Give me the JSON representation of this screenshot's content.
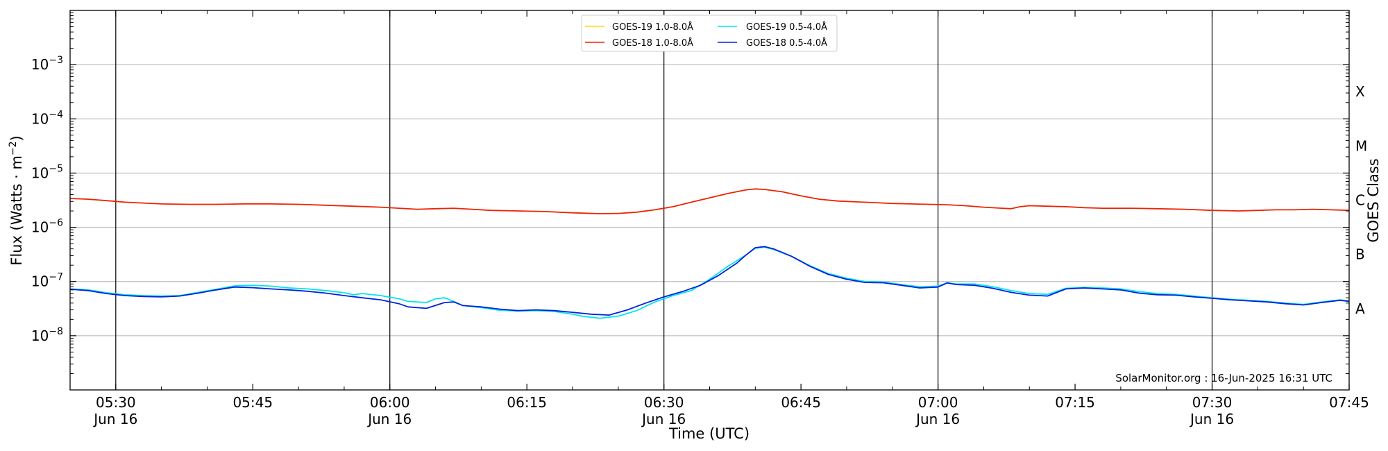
{
  "chart_data": {
    "type": "line",
    "xlabel": "Time (UTC)",
    "ylabel_main": "Flux (Watts · m",
    "ylabel_sup": "−2",
    "ylabel_close": ")",
    "right_label": "GOES Class",
    "credit": "SolarMonitor.org : 16-Jun-2025 16:31 UTC",
    "y_scale": "log",
    "ylim": [
      1e-09,
      0.01
    ],
    "x_range_minutes": [
      325,
      465
    ],
    "grid": "horizontal",
    "legend_position": "top-center",
    "y_ticks": [
      {
        "exp": -8,
        "base": "10",
        "sup": "−8"
      },
      {
        "exp": -7,
        "base": "10",
        "sup": "−7"
      },
      {
        "exp": -6,
        "base": "10",
        "sup": "−6"
      },
      {
        "exp": -5,
        "base": "10",
        "sup": "−5"
      },
      {
        "exp": -4,
        "base": "10",
        "sup": "−4"
      },
      {
        "exp": -3,
        "base": "10",
        "sup": "−3"
      }
    ],
    "x_ticks": [
      {
        "t": 330,
        "line1": "05:30",
        "line2": "Jun 16",
        "day_line": true
      },
      {
        "t": 345,
        "line1": "05:45",
        "line2": "",
        "day_line": false
      },
      {
        "t": 360,
        "line1": "06:00",
        "line2": "Jun 16",
        "day_line": true
      },
      {
        "t": 375,
        "line1": "06:15",
        "line2": "",
        "day_line": false
      },
      {
        "t": 390,
        "line1": "06:30",
        "line2": "Jun 16",
        "day_line": true
      },
      {
        "t": 405,
        "line1": "06:45",
        "line2": "",
        "day_line": false
      },
      {
        "t": 420,
        "line1": "07:00",
        "line2": "Jun 16",
        "day_line": true
      },
      {
        "t": 435,
        "line1": "07:15",
        "line2": "",
        "day_line": false
      },
      {
        "t": 450,
        "line1": "07:30",
        "line2": "Jun 16",
        "day_line": true
      },
      {
        "t": 465,
        "line1": "07:45",
        "line2": "",
        "day_line": false
      }
    ],
    "goes_classes": [
      {
        "label": "A",
        "exp": -7.5
      },
      {
        "label": "B",
        "exp": -6.5
      },
      {
        "label": "C",
        "exp": -5.5
      },
      {
        "label": "M",
        "exp": -4.5
      },
      {
        "label": "X",
        "exp": -3.5
      }
    ],
    "series": [
      {
        "name": "GOES-19 1.0-8.0Å",
        "color": "#ffd700",
        "points": []
      },
      {
        "name": "GOES-18 1.0-8.0Å",
        "color": "#ee2200",
        "points": [
          [
            325,
            3.4e-06
          ],
          [
            327,
            3.3e-06
          ],
          [
            329,
            3.1e-06
          ],
          [
            331,
            2.9e-06
          ],
          [
            333,
            2.8e-06
          ],
          [
            335,
            2.7e-06
          ],
          [
            338,
            2.65e-06
          ],
          [
            341,
            2.65e-06
          ],
          [
            344,
            2.7e-06
          ],
          [
            347,
            2.7e-06
          ],
          [
            350,
            2.65e-06
          ],
          [
            353,
            2.55e-06
          ],
          [
            356,
            2.45e-06
          ],
          [
            359,
            2.35e-06
          ],
          [
            361,
            2.25e-06
          ],
          [
            363,
            2.15e-06
          ],
          [
            365,
            2.2e-06
          ],
          [
            367,
            2.25e-06
          ],
          [
            369,
            2.15e-06
          ],
          [
            371,
            2.05e-06
          ],
          [
            374,
            2e-06
          ],
          [
            377,
            1.95e-06
          ],
          [
            380,
            1.85e-06
          ],
          [
            383,
            1.78e-06
          ],
          [
            385,
            1.8e-06
          ],
          [
            387,
            1.9e-06
          ],
          [
            389,
            2.1e-06
          ],
          [
            391,
            2.4e-06
          ],
          [
            393,
            2.9e-06
          ],
          [
            395,
            3.5e-06
          ],
          [
            397,
            4.2e-06
          ],
          [
            399,
            4.9e-06
          ],
          [
            400,
            5.1e-06
          ],
          [
            401,
            5e-06
          ],
          [
            403,
            4.5e-06
          ],
          [
            405,
            3.8e-06
          ],
          [
            407,
            3.3e-06
          ],
          [
            409,
            3.05e-06
          ],
          [
            411,
            2.95e-06
          ],
          [
            413,
            2.85e-06
          ],
          [
            415,
            2.75e-06
          ],
          [
            417,
            2.7e-06
          ],
          [
            419,
            2.65e-06
          ],
          [
            421,
            2.6e-06
          ],
          [
            423,
            2.5e-06
          ],
          [
            425,
            2.35e-06
          ],
          [
            427,
            2.25e-06
          ],
          [
            428,
            2.2e-06
          ],
          [
            429,
            2.4e-06
          ],
          [
            430,
            2.5e-06
          ],
          [
            432,
            2.45e-06
          ],
          [
            434,
            2.4e-06
          ],
          [
            436,
            2.3e-06
          ],
          [
            438,
            2.25e-06
          ],
          [
            441,
            2.25e-06
          ],
          [
            444,
            2.2e-06
          ],
          [
            447,
            2.15e-06
          ],
          [
            450,
            2.05e-06
          ],
          [
            453,
            2e-06
          ],
          [
            455,
            2.05e-06
          ],
          [
            457,
            2.1e-06
          ],
          [
            459,
            2.1e-06
          ],
          [
            461,
            2.15e-06
          ],
          [
            463,
            2.1e-06
          ],
          [
            465,
            2.05e-06
          ]
        ]
      },
      {
        "name": "GOES-19 0.5-4.0Å",
        "color": "#00e5ee",
        "points": [
          [
            325,
            7.3e-08
          ],
          [
            327,
            7e-08
          ],
          [
            329,
            6.2e-08
          ],
          [
            331,
            5.7e-08
          ],
          [
            333,
            5.5e-08
          ],
          [
            335,
            5.4e-08
          ],
          [
            337,
            5.5e-08
          ],
          [
            339,
            6.3e-08
          ],
          [
            341,
            7.2e-08
          ],
          [
            343,
            8.3e-08
          ],
          [
            345,
            8.5e-08
          ],
          [
            347,
            8.2e-08
          ],
          [
            349,
            7.6e-08
          ],
          [
            351,
            7.3e-08
          ],
          [
            353,
            6.8e-08
          ],
          [
            355,
            6.2e-08
          ],
          [
            356,
            5.7e-08
          ],
          [
            357,
            6e-08
          ],
          [
            359,
            5.5e-08
          ],
          [
            361,
            4.8e-08
          ],
          [
            362,
            4.3e-08
          ],
          [
            364,
            4.1e-08
          ],
          [
            365,
            4.8e-08
          ],
          [
            366,
            5e-08
          ],
          [
            367,
            4.3e-08
          ],
          [
            368,
            3.6e-08
          ],
          [
            370,
            3.3e-08
          ],
          [
            372,
            2.95e-08
          ],
          [
            374,
            2.85e-08
          ],
          [
            376,
            2.9e-08
          ],
          [
            378,
            2.8e-08
          ],
          [
            380,
            2.5e-08
          ],
          [
            381,
            2.3e-08
          ],
          [
            383,
            2.1e-08
          ],
          [
            385,
            2.3e-08
          ],
          [
            387,
            2.9e-08
          ],
          [
            389,
            4.2e-08
          ],
          [
            391,
            5.5e-08
          ],
          [
            393,
            6.8e-08
          ],
          [
            395,
            1.1e-07
          ],
          [
            397,
            1.9e-07
          ],
          [
            399,
            3.1e-07
          ],
          [
            400,
            4.1e-07
          ],
          [
            401,
            4.3e-07
          ],
          [
            402,
            3.9e-07
          ],
          [
            404,
            2.9e-07
          ],
          [
            406,
            1.95e-07
          ],
          [
            408,
            1.4e-07
          ],
          [
            410,
            1.15e-07
          ],
          [
            412,
            1e-07
          ],
          [
            414,
            9.8e-08
          ],
          [
            416,
            8.8e-08
          ],
          [
            418,
            8e-08
          ],
          [
            420,
            8.2e-08
          ],
          [
            421,
            9.5e-08
          ],
          [
            422,
            9e-08
          ],
          [
            424,
            9e-08
          ],
          [
            426,
            8e-08
          ],
          [
            428,
            6.8e-08
          ],
          [
            430,
            6e-08
          ],
          [
            432,
            5.8e-08
          ],
          [
            434,
            7.5e-08
          ],
          [
            436,
            7.8e-08
          ],
          [
            438,
            7.6e-08
          ],
          [
            440,
            7.3e-08
          ],
          [
            442,
            6.5e-08
          ],
          [
            444,
            6e-08
          ],
          [
            446,
            5.8e-08
          ],
          [
            448,
            5.4e-08
          ],
          [
            450,
            5e-08
          ],
          [
            452,
            4.7e-08
          ],
          [
            454,
            4.5e-08
          ],
          [
            456,
            4.3e-08
          ],
          [
            458,
            4e-08
          ],
          [
            460,
            3.8e-08
          ],
          [
            462,
            4.2e-08
          ],
          [
            464,
            4.6e-08
          ],
          [
            465,
            4.4e-08
          ]
        ]
      },
      {
        "name": "GOES-18 0.5-4.0Å",
        "color": "#0022dd",
        "points": [
          [
            325,
            7.2e-08
          ],
          [
            327,
            6.8e-08
          ],
          [
            329,
            6e-08
          ],
          [
            331,
            5.5e-08
          ],
          [
            333,
            5.3e-08
          ],
          [
            335,
            5.2e-08
          ],
          [
            337,
            5.4e-08
          ],
          [
            339,
            6.1e-08
          ],
          [
            341,
            7e-08
          ],
          [
            343,
            7.9e-08
          ],
          [
            345,
            7.7e-08
          ],
          [
            347,
            7.3e-08
          ],
          [
            349,
            7e-08
          ],
          [
            351,
            6.6e-08
          ],
          [
            353,
            6.1e-08
          ],
          [
            355,
            5.5e-08
          ],
          [
            357,
            5e-08
          ],
          [
            359,
            4.6e-08
          ],
          [
            361,
            3.9e-08
          ],
          [
            362,
            3.4e-08
          ],
          [
            364,
            3.2e-08
          ],
          [
            366,
            4.1e-08
          ],
          [
            367,
            4.2e-08
          ],
          [
            368,
            3.6e-08
          ],
          [
            370,
            3.4e-08
          ],
          [
            372,
            3.1e-08
          ],
          [
            374,
            2.9e-08
          ],
          [
            376,
            3e-08
          ],
          [
            378,
            2.9e-08
          ],
          [
            380,
            2.7e-08
          ],
          [
            382,
            2.5e-08
          ],
          [
            384,
            2.4e-08
          ],
          [
            386,
            3e-08
          ],
          [
            388,
            4e-08
          ],
          [
            390,
            5.2e-08
          ],
          [
            392,
            6.5e-08
          ],
          [
            394,
            8.5e-08
          ],
          [
            396,
            1.3e-07
          ],
          [
            398,
            2.2e-07
          ],
          [
            399,
            3.1e-07
          ],
          [
            400,
            4.2e-07
          ],
          [
            401,
            4.4e-07
          ],
          [
            402,
            4e-07
          ],
          [
            404,
            2.9e-07
          ],
          [
            406,
            1.9e-07
          ],
          [
            408,
            1.35e-07
          ],
          [
            410,
            1.1e-07
          ],
          [
            412,
            9.6e-08
          ],
          [
            414,
            9.5e-08
          ],
          [
            416,
            8.5e-08
          ],
          [
            418,
            7.6e-08
          ],
          [
            420,
            7.9e-08
          ],
          [
            421,
            9.4e-08
          ],
          [
            422,
            8.8e-08
          ],
          [
            424,
            8.5e-08
          ],
          [
            426,
            7.5e-08
          ],
          [
            428,
            6.3e-08
          ],
          [
            430,
            5.6e-08
          ],
          [
            432,
            5.4e-08
          ],
          [
            434,
            7.3e-08
          ],
          [
            436,
            7.6e-08
          ],
          [
            438,
            7.3e-08
          ],
          [
            440,
            7e-08
          ],
          [
            442,
            6.1e-08
          ],
          [
            444,
            5.7e-08
          ],
          [
            446,
            5.6e-08
          ],
          [
            448,
            5.2e-08
          ],
          [
            450,
            4.9e-08
          ],
          [
            452,
            4.6e-08
          ],
          [
            454,
            4.4e-08
          ],
          [
            456,
            4.2e-08
          ],
          [
            458,
            3.9e-08
          ],
          [
            460,
            3.7e-08
          ],
          [
            462,
            4.1e-08
          ],
          [
            464,
            4.5e-08
          ],
          [
            465,
            4.3e-08
          ]
        ]
      }
    ]
  }
}
